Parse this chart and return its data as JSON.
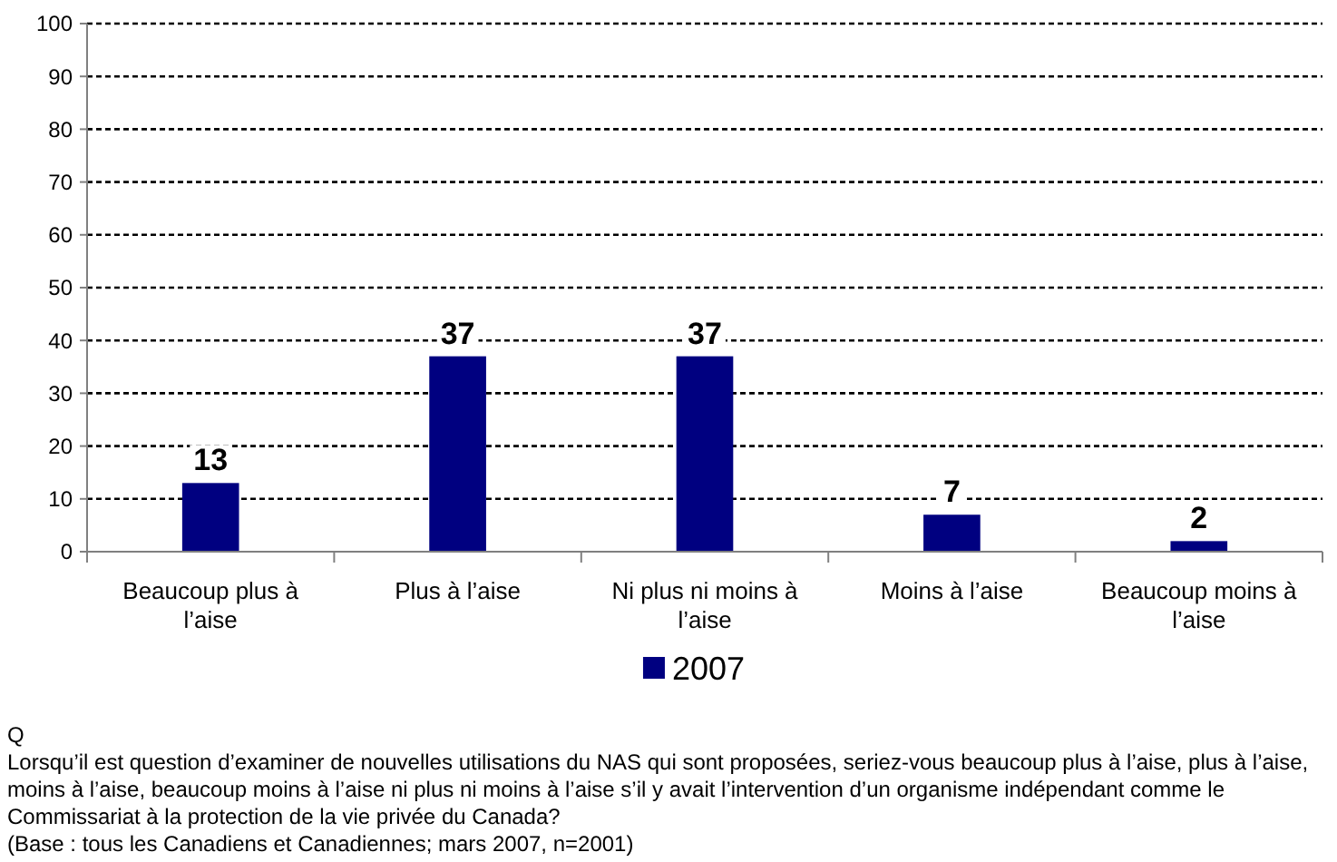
{
  "chart_data": {
    "type": "bar",
    "categories": [
      "Beaucoup plus à l’aise",
      "Plus à l’aise",
      "Ni plus ni moins à l’aise",
      "Moins à l’aise",
      "Beaucoup moins à l’aise"
    ],
    "series": [
      {
        "name": "2007",
        "color": "#000080",
        "values": [
          13,
          37,
          37,
          7,
          2
        ]
      }
    ],
    "ylim": [
      0,
      100
    ],
    "yticks": [
      0,
      10,
      20,
      30,
      40,
      50,
      60,
      70,
      80,
      90,
      100
    ],
    "grid": "y",
    "legend": "bottom",
    "data_labels": true,
    "annotations": [
      "Q",
      "Lorsqu’il est question d’examiner de nouvelles utilisations du NAS qui sont proposées, seriez-vous beaucoup plus à l’aise, plus à l’aise, moins à l’aise, beaucoup moins à l’aise ni plus ni moins à l’aise s’il y avait l’intervention d’un organisme indépendant comme le Commissariat à la protection de la vie privée du Canada?",
      "(Base : tous les Canadiens et Canadiennes; mars 2007, n=2001)"
    ]
  }
}
